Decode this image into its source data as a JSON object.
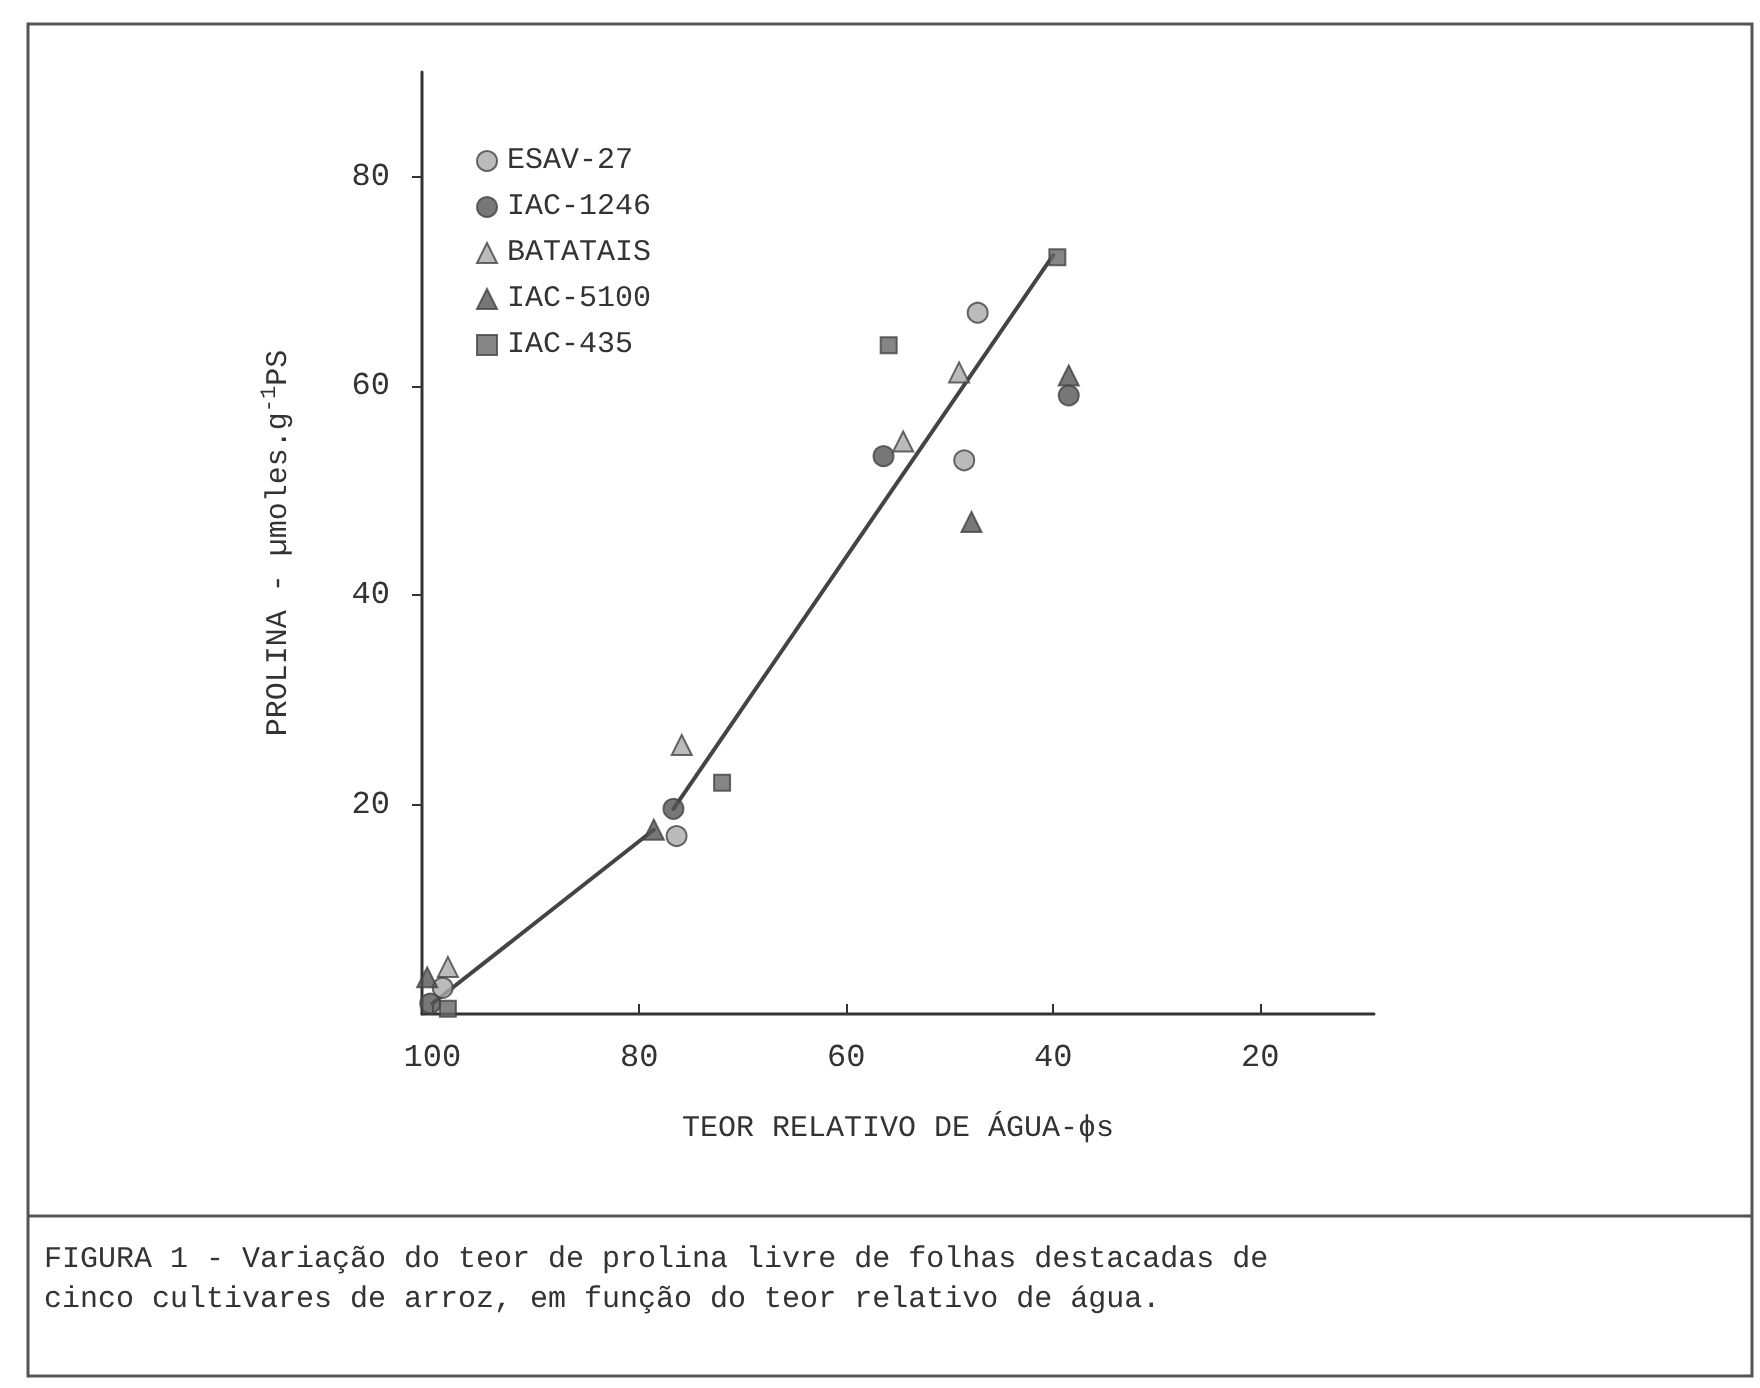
{
  "chart_data": {
    "type": "scatter",
    "xlabel": "TEOR RELATIVO DE ÁGUA-ϕs",
    "ylabel": "PROLINA - µmoles.g$^{-1}$PS",
    "annotations": [
      "FIGURA 1 - Variação do teor de prolina livre de folhas destacadas de cinco cultivares de arroz, em função do teor relativo de água."
    ],
    "xlim": [
      101,
      9
    ],
    "xticks": [
      100,
      80,
      60,
      40,
      20
    ],
    "ylim": [
      0,
      90
    ],
    "yticks": [
      20,
      40,
      60,
      80
    ],
    "grid": false,
    "legend": "top left",
    "series": [
      {
        "name": "ESAV-27",
        "color": "#aaaaaa",
        "marker": "circle",
        "x": [
          99,
          76.4,
          48.6,
          47.3
        ],
        "values": [
          2.5,
          17,
          52.9,
          67
        ]
      },
      {
        "name": "IAC-1246",
        "color": "#555555",
        "marker": "circle",
        "x": [
          100.2,
          76.7,
          56.4,
          38.5
        ],
        "values": [
          1,
          19.6,
          53.3,
          59.1
        ]
      },
      {
        "name": "BATATAIS",
        "color": "#aaaaaa",
        "marker": "triangle",
        "x": [
          98.5,
          75.9,
          54.5,
          49.1
        ],
        "values": [
          4.5,
          25.7,
          54.7,
          61.3
        ]
      },
      {
        "name": "IAC-5100",
        "color": "#555555",
        "marker": "triangle",
        "x": [
          100.5,
          78.6,
          47.9,
          38.5
        ],
        "values": [
          3.5,
          17.6,
          47,
          61
        ]
      },
      {
        "name": "IAC-435",
        "color": "#666666",
        "marker": "square",
        "x": [
          98.5,
          72,
          55.9,
          39.6
        ],
        "values": [
          0.5,
          22.1,
          63.9,
          72.3
        ]
      },
      {
        "type": "line",
        "color": "#444444",
        "marker": "none",
        "x": [
          100,
          78.6,
          77,
          76.7,
          40
        ],
        "values": [
          1,
          17.6,
          null,
          19.6,
          72.5
        ]
      }
    ]
  }
}
